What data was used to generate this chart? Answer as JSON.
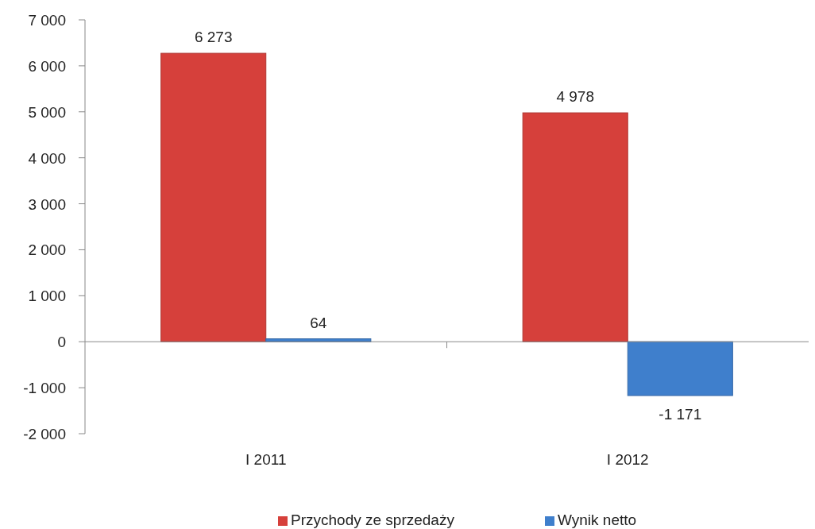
{
  "chart_data": {
    "type": "bar",
    "categories": [
      "I 2011",
      "I 2012"
    ],
    "series": [
      {
        "name": "Przychody ze sprzedaży",
        "color": "#d6403b",
        "values": [
          6273,
          4978
        ],
        "value_labels": [
          "6 273",
          "4 978"
        ]
      },
      {
        "name": "Wynik netto",
        "color": "#3f7fcc",
        "values": [
          64,
          -1171
        ],
        "value_labels": [
          "64",
          "-1 171"
        ]
      }
    ],
    "ylim": [
      -2000,
      7000
    ],
    "yticks": [
      {
        "value": -2000,
        "label": "-2 000"
      },
      {
        "value": -1000,
        "label": "-1 000"
      },
      0,
      {
        "value": 1000,
        "label": "1 000"
      },
      {
        "value": 2000,
        "label": "2 000"
      },
      {
        "value": 3000,
        "label": "3 000"
      },
      {
        "value": 4000,
        "label": "4 000"
      },
      {
        "value": 5000,
        "label": "5 000"
      },
      {
        "value": 6000,
        "label": "6 000"
      },
      {
        "value": 7000,
        "label": "7 000"
      }
    ],
    "legend": "bottom"
  }
}
